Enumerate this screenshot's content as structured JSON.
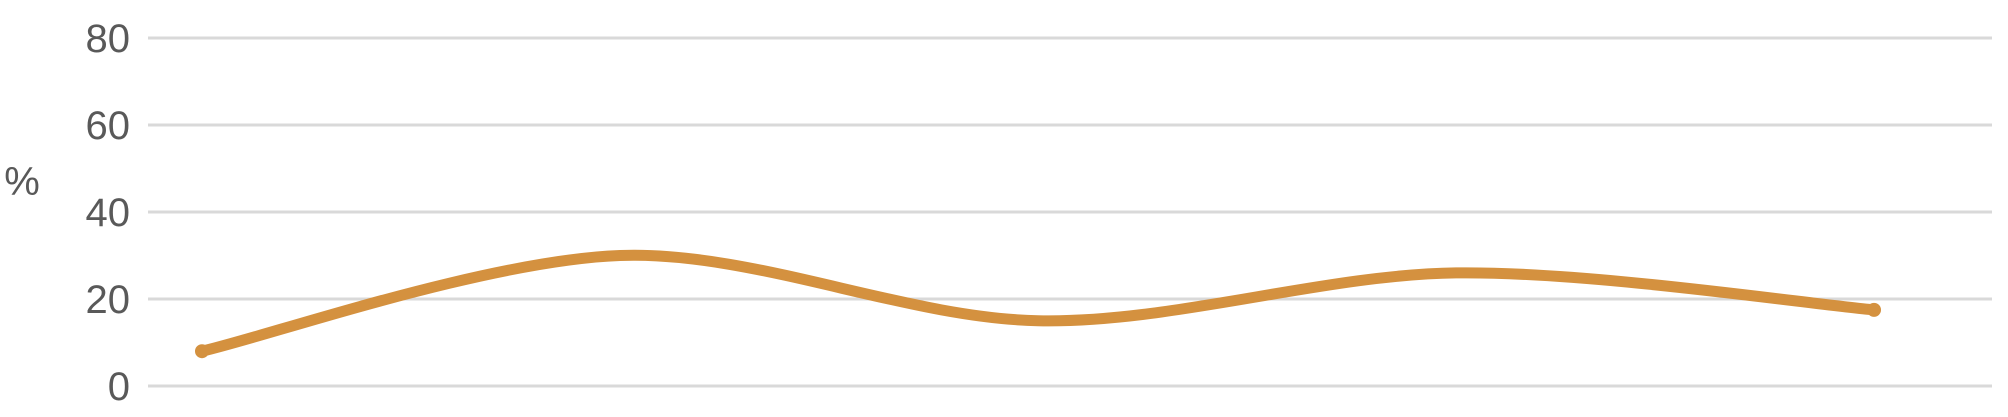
{
  "chart_data": {
    "type": "line",
    "ylabel": "%",
    "ylim": [
      0,
      80
    ],
    "yticks": [
      0,
      20,
      40,
      60,
      80
    ],
    "grid": true,
    "series": [
      {
        "color": "#D4913F",
        "values": [
          8,
          30,
          15,
          26,
          17.5
        ]
      }
    ]
  }
}
